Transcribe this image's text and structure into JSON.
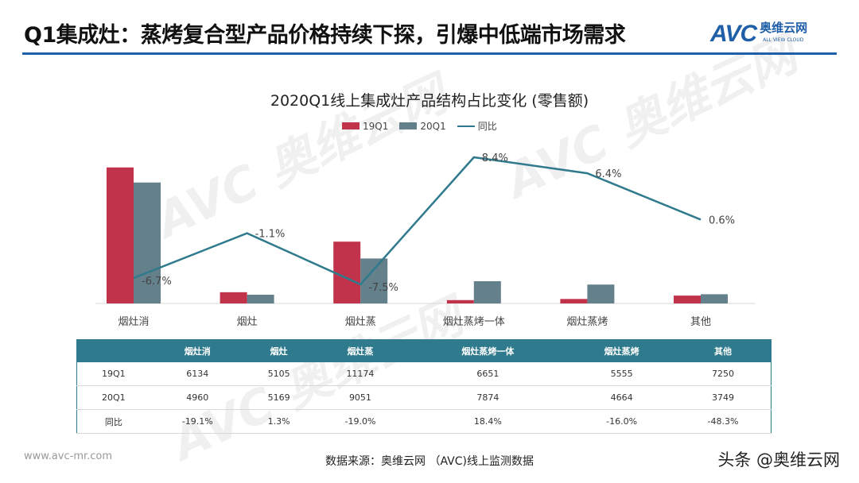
{
  "header": {
    "title": "Q1集成灶：蒸烤复合型产品价格持续下探，引爆中低端市场需求",
    "logo_text": "AVC",
    "logo_cn": "奥维云网",
    "logo_en": "ALL VIEW CLOUD"
  },
  "chart_data": {
    "type": "bar+line",
    "title": "2020Q1线上集成灶产品结构占比变化 (零售额)",
    "categories": [
      "烟灶消",
      "烟灶",
      "烟灶蒸",
      "烟灶蒸烤一体",
      "烟灶蒸烤",
      "其他"
    ],
    "series": [
      {
        "name": "19Q1",
        "type": "bar",
        "color": "#c0334a",
        "values": [
          60.5,
          5.0,
          27.5,
          1.5,
          2.0,
          3.5
        ]
      },
      {
        "name": "20Q1",
        "type": "bar",
        "color": "#64808b",
        "values": [
          53.8,
          3.9,
          20.0,
          9.9,
          8.4,
          4.1
        ]
      },
      {
        "name": "同比",
        "type": "line",
        "color": "#2f7a8c",
        "values": [
          -6.7,
          -1.1,
          -7.5,
          8.4,
          6.4,
          0.6
        ],
        "labels": [
          "-6.7%",
          "-1.1%",
          "-7.5%",
          "8.4%",
          "6.4%",
          "0.6%"
        ]
      }
    ],
    "legend": "top",
    "grid": false
  },
  "table": {
    "headers": [
      "",
      "烟灶消",
      "烟灶",
      "烟灶蒸",
      "烟灶蒸烤一体",
      "烟灶蒸烤",
      "其他"
    ],
    "rows": [
      [
        "19Q1",
        "6134",
        "5105",
        "11174",
        "6651",
        "5555",
        "7250"
      ],
      [
        "20Q1",
        "4960",
        "5169",
        "9051",
        "7874",
        "4664",
        "3749"
      ],
      [
        "同比",
        "-19.1%",
        "1.3%",
        "-19.0%",
        "18.4%",
        "-16.0%",
        "-48.3%"
      ]
    ]
  },
  "footer": {
    "site": "www.avc-mr.com",
    "source": "数据来源：奥维云网 （AVC)线上监测数据",
    "watermark": "头条 @奥维云网"
  }
}
